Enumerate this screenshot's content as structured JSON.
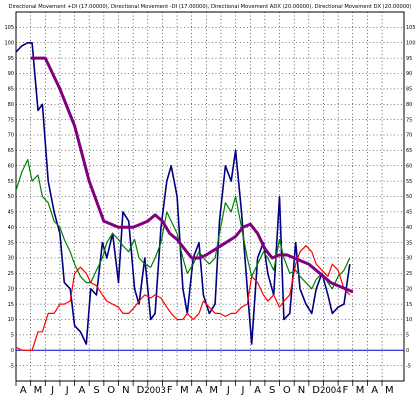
{
  "chart_data": {
    "type": "line",
    "title": "Directional Movement +DI (17.00000), Directional Movement -DI (17.00000), Directional Movement ADX (20.00000), Directional Movement DX (20.00000)",
    "xlabel": "",
    "ylabel": "",
    "ylim": [
      -10,
      110
    ],
    "yticks": [
      -5,
      0,
      5,
      10,
      15,
      20,
      25,
      30,
      35,
      40,
      45,
      50,
      55,
      60,
      65,
      70,
      75,
      80,
      85,
      90,
      95,
      100,
      105
    ],
    "x_axis_labels": [
      "A",
      "M",
      "J",
      "J",
      "A",
      "S",
      "O",
      "N",
      "D",
      "2003",
      "F",
      "M",
      "A",
      "M",
      "J",
      "J",
      "A",
      "S",
      "O",
      "N",
      "D",
      "2004",
      "F",
      "M",
      "A",
      "M"
    ],
    "x_label_positions": [
      0.5,
      1.5,
      2.5,
      3.5,
      4.5,
      5.5,
      6.5,
      7.5,
      8.5,
      9.5,
      10.5,
      11.5,
      12.5,
      13.5,
      14.5,
      15.5,
      16.5,
      17.5,
      18.5,
      19.5,
      20.5,
      21.5,
      22.5,
      23.5,
      24.5,
      25.5
    ],
    "x_range": [
      0,
      26.5
    ],
    "grid": true,
    "reference_line": 0,
    "colors": {
      "dx": "#000080",
      "plus_di": "#008000",
      "minus_di": "#ff0000",
      "adx": "#800080",
      "grid": "#000000",
      "zero": "#0000cd"
    },
    "series": [
      {
        "key": "dx",
        "x": [
          0.0,
          0.4,
          0.8,
          1.1,
          1.5,
          1.8,
          2.2,
          2.6,
          3.0,
          3.3,
          3.7,
          4.0,
          4.4,
          4.8,
          5.1,
          5.5,
          5.9,
          6.2,
          6.6,
          7.0,
          7.3,
          7.7,
          8.1,
          8.4,
          8.8,
          9.2,
          9.5,
          9.9,
          10.3,
          10.6,
          11.0,
          11.4,
          11.7,
          12.1,
          12.5,
          12.8,
          13.2,
          13.6,
          13.9,
          14.3,
          14.7,
          15.0,
          15.4,
          15.8,
          16.1,
          16.5,
          16.9,
          17.2,
          17.6,
          18.0,
          18.3,
          18.7,
          19.1,
          19.4,
          19.8,
          20.2,
          20.5,
          20.9,
          21.3,
          21.6,
          22.0,
          22.4,
          22.8
        ],
        "y": [
          97,
          99,
          100,
          100,
          78,
          80,
          55,
          45,
          38,
          22,
          20,
          8,
          6,
          2,
          20,
          18,
          35,
          30,
          38,
          22,
          45,
          42,
          20,
          15,
          30,
          10,
          12,
          40,
          55,
          60,
          50,
          20,
          12,
          30,
          35,
          18,
          12,
          15,
          42,
          60,
          55,
          65,
          45,
          20,
          2,
          30,
          35,
          25,
          18,
          50,
          10,
          12,
          35,
          20,
          15,
          12,
          20,
          25,
          18,
          12,
          14,
          15,
          28
        ]
      },
      {
        "key": "plus_di",
        "x": [
          0.0,
          0.4,
          0.8,
          1.1,
          1.5,
          1.8,
          2.2,
          2.6,
          3.0,
          3.3,
          3.7,
          4.0,
          4.4,
          4.8,
          5.1,
          5.5,
          5.9,
          6.2,
          6.6,
          7.0,
          7.3,
          7.7,
          8.1,
          8.4,
          8.8,
          9.2,
          9.5,
          9.9,
          10.3,
          10.6,
          11.0,
          11.4,
          11.7,
          12.1,
          12.5,
          12.8,
          13.2,
          13.6,
          13.9,
          14.3,
          14.7,
          15.0,
          15.4,
          15.8,
          16.1,
          16.5,
          16.9,
          17.2,
          17.6,
          18.0,
          18.3,
          18.7,
          19.1,
          19.4,
          19.8,
          20.2,
          20.5,
          20.9,
          21.3,
          21.6,
          22.0,
          22.4,
          22.8
        ],
        "y": [
          52,
          58,
          62,
          55,
          57,
          50,
          48,
          42,
          40,
          36,
          32,
          28,
          24,
          22,
          22,
          26,
          30,
          35,
          38,
          36,
          34,
          32,
          36,
          30,
          28,
          27,
          30,
          35,
          45,
          42,
          38,
          30,
          25,
          28,
          32,
          30,
          28,
          30,
          38,
          48,
          45,
          50,
          40,
          30,
          24,
          28,
          32,
          30,
          26,
          36,
          30,
          25,
          26,
          24,
          22,
          20,
          23,
          25,
          22,
          20,
          24,
          26,
          30
        ]
      },
      {
        "key": "minus_di",
        "x": [
          0.0,
          0.4,
          0.8,
          1.1,
          1.5,
          1.8,
          2.2,
          2.6,
          3.0,
          3.3,
          3.7,
          4.0,
          4.4,
          4.8,
          5.1,
          5.5,
          5.9,
          6.2,
          6.6,
          7.0,
          7.3,
          7.7,
          8.1,
          8.4,
          8.8,
          9.2,
          9.5,
          9.9,
          10.3,
          10.6,
          11.0,
          11.4,
          11.7,
          12.1,
          12.5,
          12.8,
          13.2,
          13.6,
          13.9,
          14.3,
          14.7,
          15.0,
          15.4,
          15.8,
          16.1,
          16.5,
          16.9,
          17.2,
          17.6,
          18.0,
          18.3,
          18.7,
          19.1,
          19.4,
          19.8,
          20.2,
          20.5,
          20.9,
          21.3,
          21.6,
          22.0,
          22.4,
          22.8
        ],
        "y": [
          1,
          0,
          0,
          0,
          6,
          6,
          12,
          12,
          15,
          15,
          16,
          25,
          27,
          25,
          22,
          21,
          18,
          16,
          15,
          14,
          12,
          12,
          14,
          16,
          18,
          17,
          18,
          17,
          14,
          12,
          10,
          10,
          12,
          10,
          12,
          16,
          14,
          12,
          12,
          11,
          12,
          12,
          14,
          15,
          24,
          22,
          18,
          16,
          18,
          14,
          16,
          18,
          28,
          32,
          34,
          32,
          28,
          26,
          24,
          28,
          26,
          20,
          18
        ]
      },
      {
        "key": "adx",
        "x": [
          1.0,
          2.0,
          3.0,
          4.0,
          5.0,
          6.0,
          7.0,
          8.0,
          8.5,
          9.0,
          9.5,
          10.0,
          10.5,
          11.0,
          11.5,
          12.0,
          12.5,
          13.0,
          14.0,
          15.0,
          15.5,
          16.0,
          16.5,
          17.0,
          17.5,
          18.0,
          18.5,
          19.0,
          19.5,
          20.0,
          20.5,
          21.0,
          21.5,
          22.0,
          22.5,
          23.0
        ],
        "y": [
          95,
          95,
          85,
          73,
          55,
          42,
          40,
          40,
          41,
          42,
          44,
          42,
          38,
          36,
          33,
          30,
          30,
          31,
          34,
          37,
          40,
          41,
          38,
          33,
          30,
          31,
          31,
          30,
          29,
          28,
          26,
          24,
          22,
          21,
          20,
          19
        ]
      }
    ]
  }
}
